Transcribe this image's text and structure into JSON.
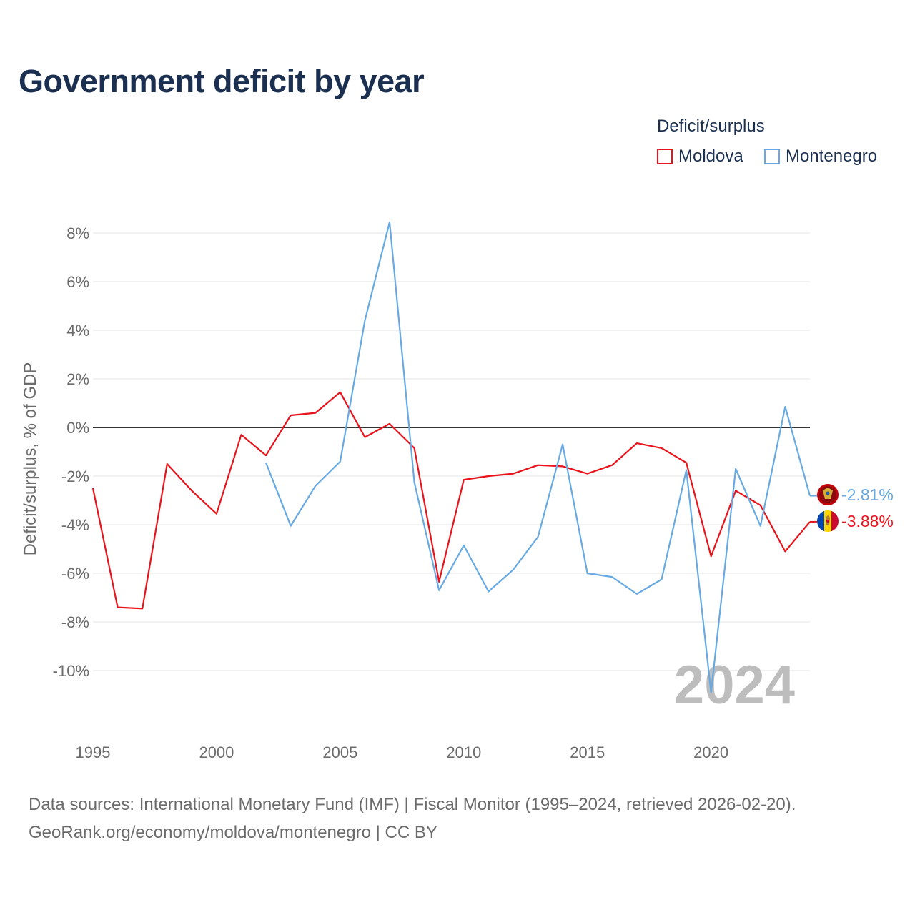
{
  "chart_data": {
    "type": "line",
    "title": "Government deficit by year",
    "ylabel": "Deficit/surplus, % of GDP",
    "xlabel": "",
    "legend_title": "Deficit/surplus",
    "legend_position": "top-right",
    "xlim": [
      1995,
      2024
    ],
    "ylim": [
      -12,
      8.5
    ],
    "x_ticks": [
      1995,
      2000,
      2005,
      2010,
      2015,
      2020
    ],
    "x_tick_labels": [
      "1995",
      "2000",
      "2005",
      "2010",
      "2015",
      "2020"
    ],
    "y_ticks": [
      8,
      6,
      4,
      2,
      0,
      -2,
      -4,
      -6,
      -8,
      -10
    ],
    "y_tick_labels": [
      "8%",
      "6%",
      "4%",
      "2%",
      "0%",
      "-2%",
      "-4%",
      "-6%",
      "-8%",
      "-10%"
    ],
    "year_watermark": "2024",
    "series": [
      {
        "name": "Moldova",
        "color": "#e8131b",
        "end_label": "-3.88%",
        "flag": "moldova-flag",
        "x": [
          1995,
          1996,
          1997,
          1998,
          1999,
          2000,
          2001,
          2002,
          2003,
          2004,
          2005,
          2006,
          2007,
          2008,
          2009,
          2010,
          2011,
          2012,
          2013,
          2014,
          2015,
          2016,
          2017,
          2018,
          2019,
          2020,
          2021,
          2022,
          2023,
          2024
        ],
        "values": [
          -2.5,
          -7.4,
          -7.45,
          -1.5,
          -2.6,
          -3.55,
          -0.3,
          -1.15,
          0.5,
          0.6,
          1.45,
          -0.4,
          0.15,
          -0.85,
          -6.35,
          -2.15,
          -2.0,
          -1.9,
          -1.55,
          -1.6,
          -1.9,
          -1.55,
          -0.65,
          -0.85,
          -1.45,
          -5.3,
          -2.6,
          -3.2,
          -5.1,
          -3.88
        ]
      },
      {
        "name": "Montenegro",
        "color": "#67a9e3",
        "end_label": "-2.81%",
        "flag": "montenegro-flag",
        "x": [
          2002,
          2003,
          2004,
          2005,
          2006,
          2007,
          2008,
          2009,
          2010,
          2011,
          2012,
          2013,
          2014,
          2015,
          2016,
          2017,
          2018,
          2019,
          2020,
          2021,
          2022,
          2023,
          2024
        ],
        "values": [
          -1.45,
          -4.05,
          -2.4,
          -1.4,
          4.4,
          8.45,
          -2.25,
          -6.7,
          -4.85,
          -6.75,
          -5.85,
          -4.5,
          -0.7,
          -6.0,
          -6.15,
          -6.85,
          -6.25,
          -1.75,
          -10.9,
          -1.7,
          -4.05,
          0.85,
          -2.81
        ]
      }
    ]
  },
  "footer": {
    "line1": "Data sources: International Monetary Fund (IMF) | Fiscal Monitor (1995–2024, retrieved 2026-02-20).",
    "line2": "GeoRank.org/economy/moldova/montenegro | CC BY"
  }
}
